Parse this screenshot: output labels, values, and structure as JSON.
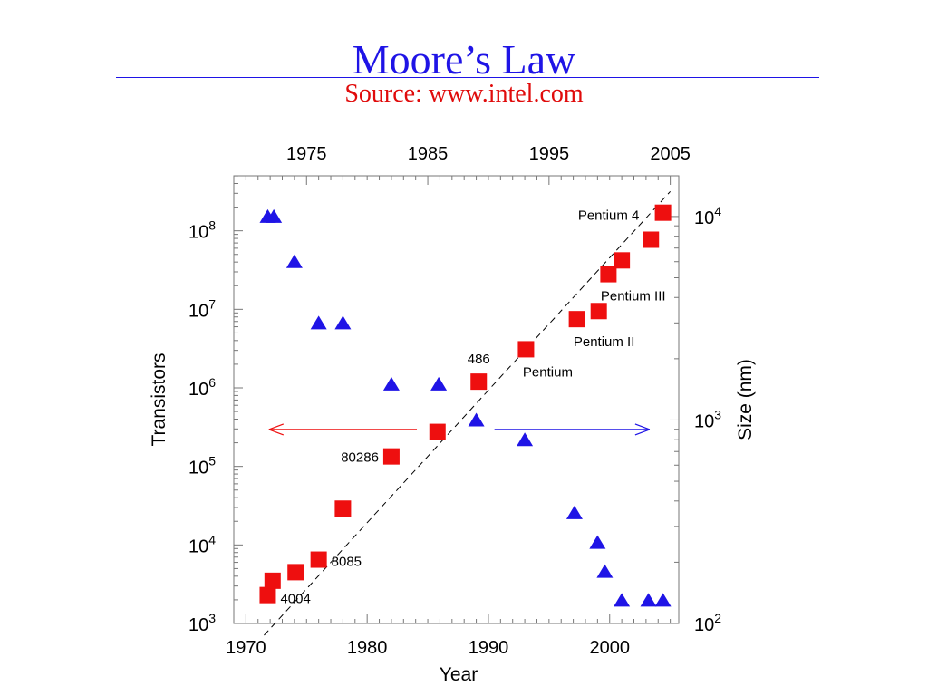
{
  "slide": {
    "title": "Moore’s Law",
    "subtitle": "Source: www.intel.com"
  },
  "chart_data": {
    "type": "scatter",
    "xlabel": "Year",
    "ylabel": "Transistors",
    "y2label": "Size (nm)",
    "xlim": [
      1969,
      2005.7
    ],
    "ylim_log10": [
      3,
      8.7
    ],
    "y2lim_log10": [
      2,
      4.2
    ],
    "x_ticks": [
      1970,
      1980,
      1990,
      2000
    ],
    "x_top_ticks": [
      1975,
      1985,
      1995,
      2005
    ],
    "y_ticks": [
      {
        "base": "10",
        "exp": "3",
        "log": 3
      },
      {
        "base": "10",
        "exp": "4",
        "log": 4
      },
      {
        "base": "10",
        "exp": "5",
        "log": 5
      },
      {
        "base": "10",
        "exp": "6",
        "log": 6
      },
      {
        "base": "10",
        "exp": "7",
        "log": 7
      },
      {
        "base": "10",
        "exp": "8",
        "log": 8
      }
    ],
    "y2_ticks": [
      {
        "base": "10",
        "exp": "2",
        "log": 2
      },
      {
        "base": "10",
        "exp": "3",
        "log": 3
      },
      {
        "base": "10",
        "exp": "4",
        "log": 4
      }
    ],
    "trend_line": {
      "x": [
        1971.5,
        2005
      ],
      "log_y": [
        2.85,
        8.5
      ],
      "style": "dashed"
    },
    "series": [
      {
        "axis": "left",
        "marker": "square",
        "color": "#ee0f0f",
        "points": [
          {
            "x": 1971.8,
            "y": 2300,
            "label": "4004"
          },
          {
            "x": 1972.2,
            "y": 3500,
            "label": ""
          },
          {
            "x": 1974.1,
            "y": 4500,
            "label": ""
          },
          {
            "x": 1976.0,
            "y": 6500,
            "label": "8085"
          },
          {
            "x": 1978.0,
            "y": 29000,
            "label": ""
          },
          {
            "x": 1982.0,
            "y": 134000,
            "label": "80286"
          },
          {
            "x": 1985.8,
            "y": 275000,
            "label": ""
          },
          {
            "x": 1989.2,
            "y": 1200000,
            "label": "486"
          },
          {
            "x": 1993.1,
            "y": 3100000,
            "label": "Pentium"
          },
          {
            "x": 1997.3,
            "y": 7500000,
            "label": "Pentium II"
          },
          {
            "x": 1999.1,
            "y": 9500000,
            "label": "Pentium III"
          },
          {
            "x": 1999.9,
            "y": 28000000,
            "label": ""
          },
          {
            "x": 2001.0,
            "y": 42000000,
            "label": ""
          },
          {
            "x": 2003.4,
            "y": 77000000,
            "label": ""
          },
          {
            "x": 2004.4,
            "y": 170000000,
            "label": "Pentium 4"
          }
        ]
      },
      {
        "axis": "right",
        "marker": "triangle",
        "color": "#1f14e6",
        "points": [
          {
            "x": 1971.8,
            "y": 10000
          },
          {
            "x": 1972.3,
            "y": 10000
          },
          {
            "x": 1974.0,
            "y": 6000
          },
          {
            "x": 1976.0,
            "y": 3000
          },
          {
            "x": 1978.0,
            "y": 3000
          },
          {
            "x": 1982.0,
            "y": 1500
          },
          {
            "x": 1985.9,
            "y": 1500
          },
          {
            "x": 1989.0,
            "y": 1000
          },
          {
            "x": 1993.0,
            "y": 800
          },
          {
            "x": 1997.1,
            "y": 350
          },
          {
            "x": 1999.0,
            "y": 250
          },
          {
            "x": 1999.6,
            "y": 180
          },
          {
            "x": 2001.0,
            "y": 130
          },
          {
            "x": 2003.2,
            "y": 130
          },
          {
            "x": 2004.4,
            "y": 130
          }
        ]
      }
    ],
    "arrows": [
      {
        "direction": "left",
        "color": "#ee0f0f",
        "x": [
          1984.1,
          1971.9
        ],
        "log_y": 5.47
      },
      {
        "direction": "right",
        "color": "#1f14e6",
        "x": [
          1990.5,
          2003.3
        ],
        "log_y": 5.47
      }
    ]
  }
}
